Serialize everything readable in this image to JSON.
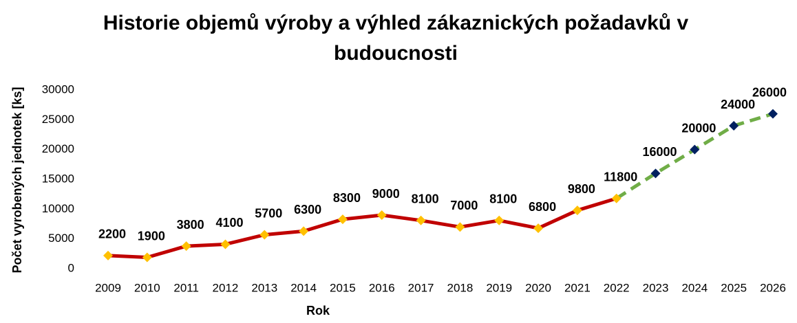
{
  "chart_data": {
    "type": "line",
    "title": "Historie objemů výroby a výhled zákaznických požadavků v budoucnosti",
    "x_label": "Rok",
    "y_label": "Počet vyrobených jednotek [ks]",
    "categories": [
      "2009",
      "2010",
      "2011",
      "2012",
      "2013",
      "2014",
      "2015",
      "2016",
      "2017",
      "2018",
      "2019",
      "2020",
      "2021",
      "2022",
      "2023",
      "2024",
      "2025",
      "2026"
    ],
    "series": [
      {
        "color": "#c00000",
        "marker_color": "#ffc000",
        "dashed": false,
        "values": [
          2200,
          1900,
          3800,
          4100,
          5700,
          6300,
          8300,
          9000,
          8100,
          7000,
          8100,
          6800,
          9800,
          11800,
          null,
          null,
          null,
          null
        ]
      },
      {
        "color": "#70ad47",
        "marker_color": "#002060",
        "dashed": true,
        "values": [
          null,
          null,
          null,
          null,
          null,
          null,
          null,
          null,
          null,
          null,
          null,
          null,
          null,
          11800,
          16000,
          20000,
          24000,
          26000
        ]
      }
    ],
    "ylim": [
      0,
      30000
    ],
    "yticks": [
      0,
      5000,
      10000,
      15000,
      20000,
      25000,
      30000
    ],
    "grid": false
  }
}
